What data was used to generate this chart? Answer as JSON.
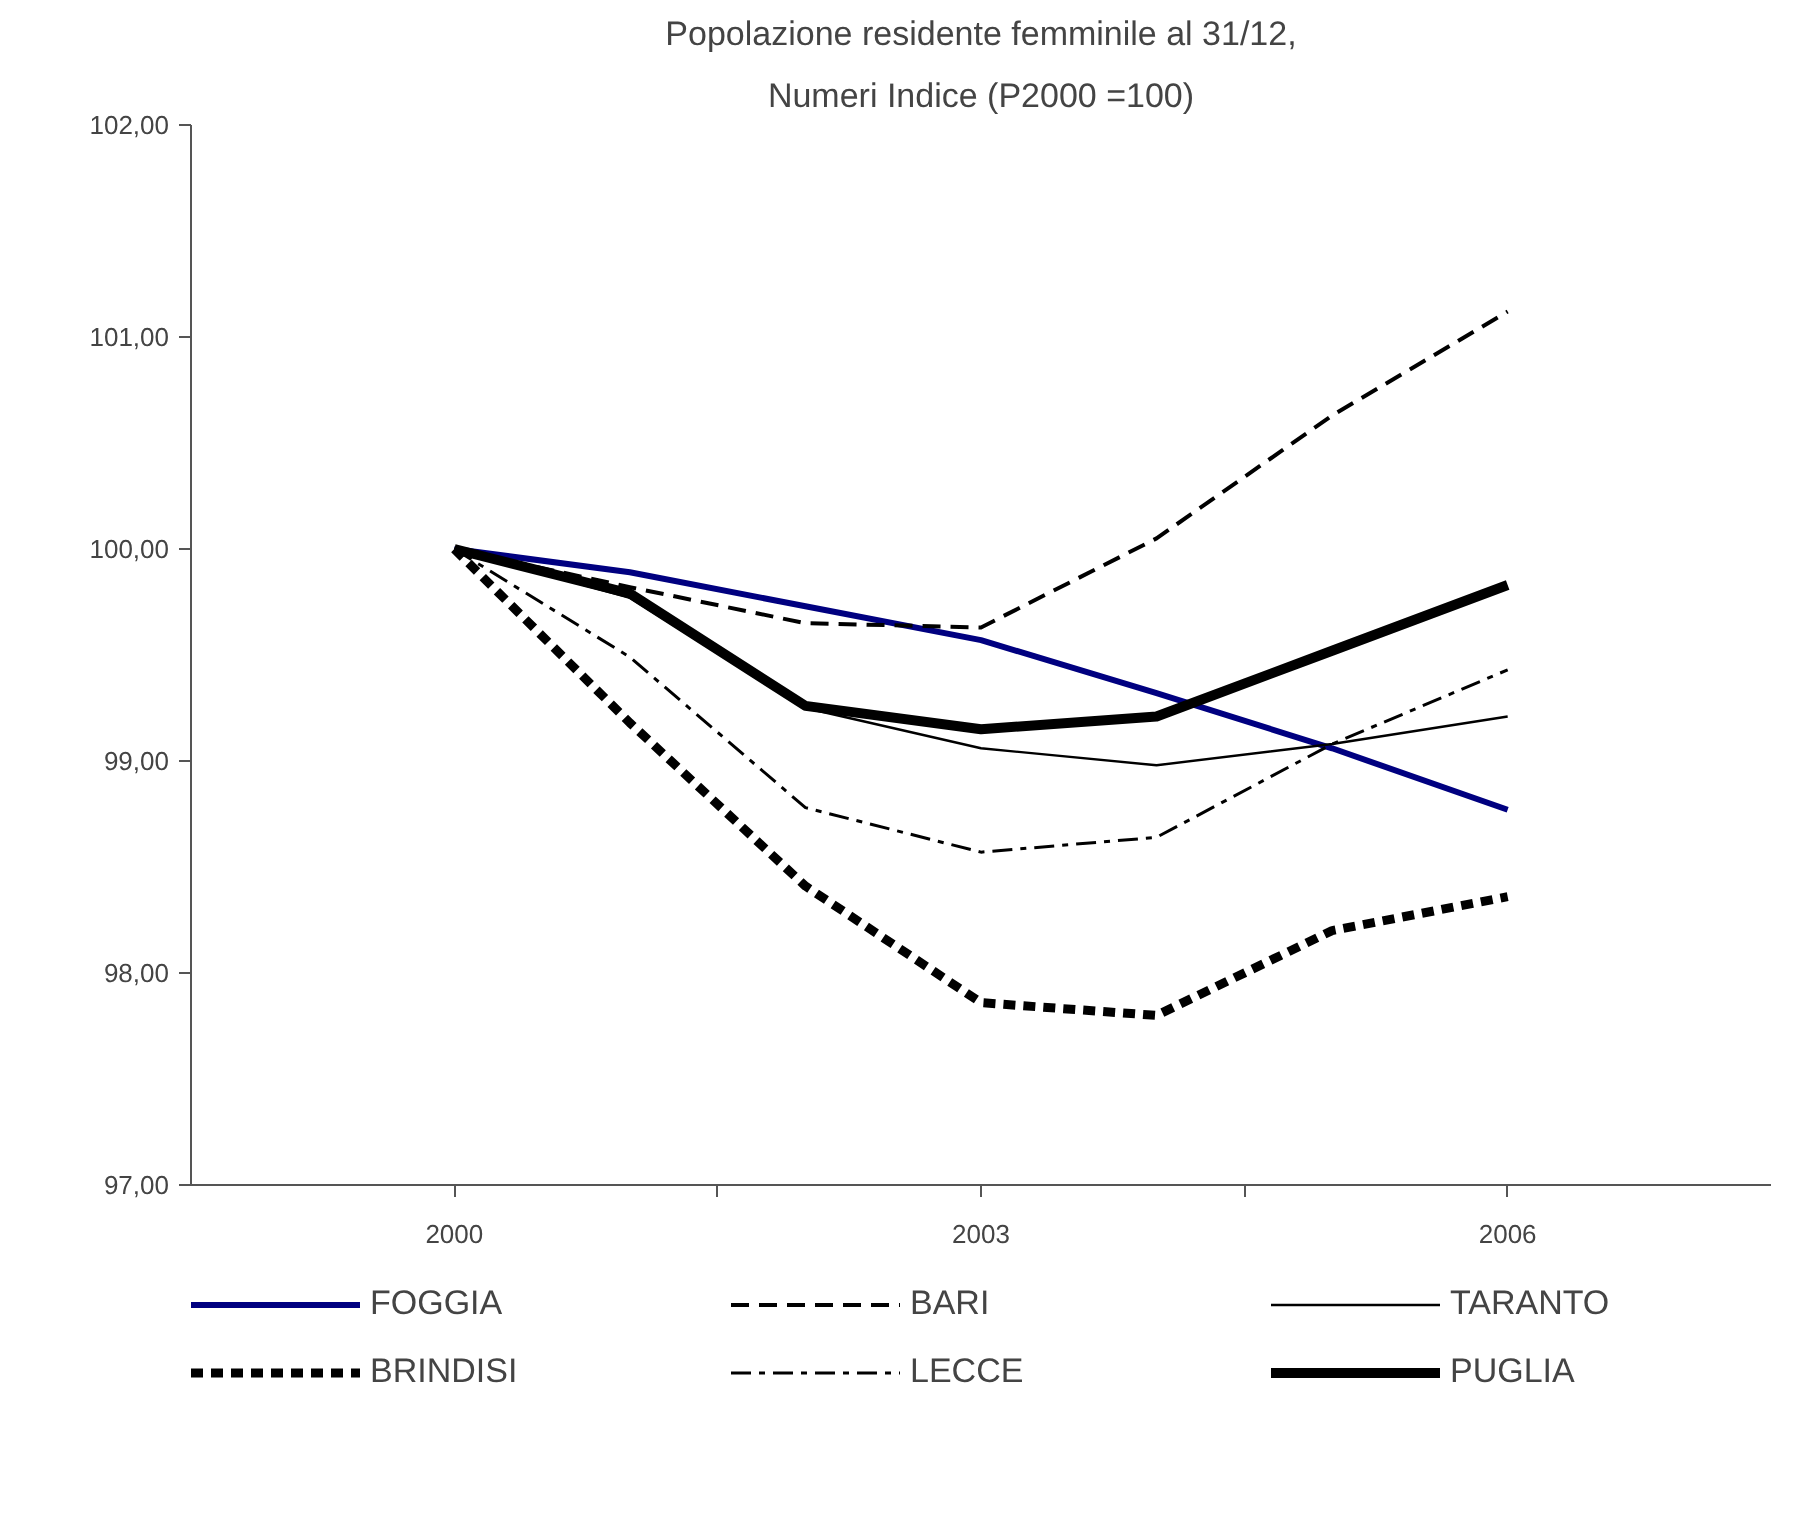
{
  "chart_data": {
    "type": "line",
    "title": "Popolazione residente femminile al 31/12,",
    "subtitle": "Numeri Indice (P2000 =100)",
    "x": [
      2000,
      2001,
      2002,
      2003,
      2004,
      2005,
      2006
    ],
    "xlim": [
      1998.5,
      2007.5
    ],
    "xticks": [
      2000,
      {
        "value": 2001.5,
        "label": null
      },
      2003,
      {
        "value": 2004.5,
        "label": null
      },
      2006
    ],
    "ylim": [
      97,
      102
    ],
    "yticks": [
      {
        "value": 97,
        "label": "97,00"
      },
      {
        "value": 98,
        "label": "98,00"
      },
      {
        "value": 99,
        "label": "99,00"
      },
      {
        "value": 100,
        "label": "100,00"
      },
      {
        "value": 101,
        "label": "101,00"
      },
      {
        "value": 102,
        "label": "102,00"
      }
    ],
    "grid": false,
    "legend": "bottom",
    "marker": "none",
    "series": [
      {
        "name": "FOGGIA",
        "color": "#000080",
        "line_style": "solid",
        "values": [
          100,
          99.89,
          99.73,
          99.57,
          99.32,
          99.06,
          98.77
        ]
      },
      {
        "name": "BARI",
        "color": "#000000",
        "line_style": "dashed",
        "values": [
          100,
          99.82,
          99.65,
          99.63,
          100.05,
          100.63,
          101.12
        ]
      },
      {
        "name": "TARANTO",
        "color": "#000000",
        "line_style": "solid",
        "values": [
          100,
          99.77,
          99.25,
          99.06,
          98.98,
          99.08,
          99.21
        ]
      },
      {
        "name": "BRINDISI",
        "color": "#000000",
        "line_style": "dotted",
        "values": [
          100,
          99.18,
          98.41,
          97.86,
          97.8,
          98.2,
          98.36
        ]
      },
      {
        "name": "LECCE",
        "color": "#000000",
        "line_style": "dashdot",
        "values": [
          100,
          99.49,
          98.78,
          98.57,
          98.64,
          99.08,
          99.43
        ]
      },
      {
        "name": "PUGLIA",
        "color": "#000000",
        "line_style": "solid",
        "values": [
          100,
          99.79,
          99.26,
          99.15,
          99.21,
          99.52,
          99.83
        ]
      }
    ]
  }
}
